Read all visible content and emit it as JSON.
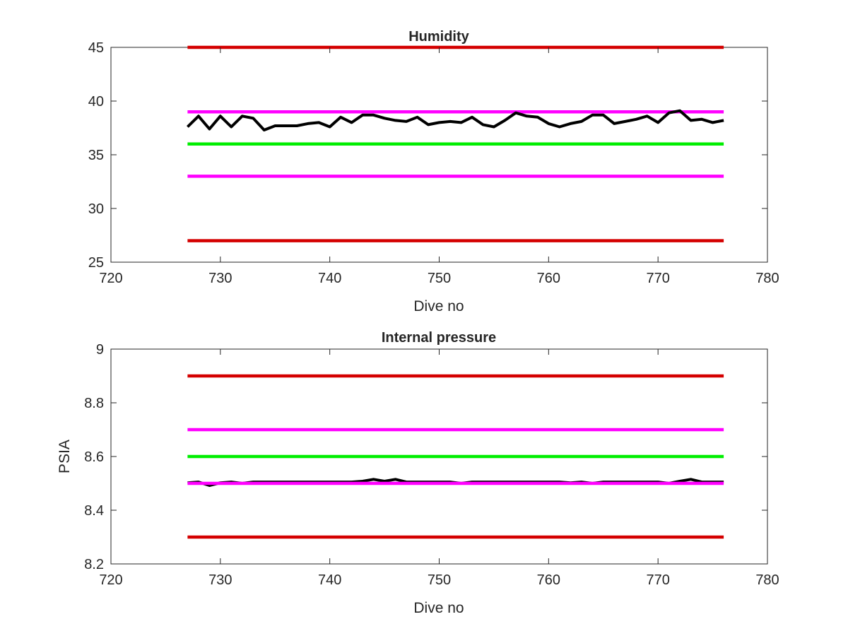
{
  "chart_data": [
    {
      "type": "line",
      "title": "Humidity",
      "xlabel": "Dive no",
      "ylabel": "",
      "xlim": [
        720,
        780
      ],
      "ylim": [
        25,
        45
      ],
      "xticks": [
        "720",
        "730",
        "740",
        "750",
        "760",
        "770",
        "780"
      ],
      "yticks": [
        "25",
        "30",
        "35",
        "40",
        "45"
      ],
      "grid": false,
      "legend": "none",
      "series": [
        {
          "color": "#d40000",
          "x": [
            727,
            776
          ],
          "y": [
            45,
            45
          ]
        },
        {
          "color": "#ff00ff",
          "x": [
            727,
            776
          ],
          "y": [
            39,
            39
          ]
        },
        {
          "color": "#00ee00",
          "x": [
            727,
            776
          ],
          "y": [
            36,
            36
          ]
        },
        {
          "color": "#ff00ff",
          "x": [
            727,
            776
          ],
          "y": [
            33,
            33
          ]
        },
        {
          "color": "#d40000",
          "x": [
            727,
            776
          ],
          "y": [
            27,
            27
          ]
        },
        {
          "color": "#000000",
          "x": [
            727,
            728,
            729,
            730,
            731,
            732,
            733,
            734,
            735,
            736,
            737,
            738,
            739,
            740,
            741,
            742,
            743,
            744,
            745,
            746,
            747,
            748,
            749,
            750,
            751,
            752,
            753,
            754,
            755,
            756,
            757,
            758,
            759,
            760,
            761,
            762,
            763,
            764,
            765,
            766,
            767,
            768,
            769,
            770,
            771,
            772,
            773,
            774,
            775,
            776
          ],
          "y": [
            37.6,
            38.6,
            37.4,
            38.6,
            37.6,
            38.6,
            38.4,
            37.3,
            37.7,
            37.7,
            37.7,
            37.9,
            38.0,
            37.6,
            38.5,
            38.0,
            38.7,
            38.7,
            38.4,
            38.2,
            38.1,
            38.5,
            37.8,
            38.0,
            38.1,
            38.0,
            38.5,
            37.8,
            37.6,
            38.2,
            38.9,
            38.6,
            38.5,
            37.9,
            37.6,
            37.9,
            38.1,
            38.7,
            38.7,
            37.9,
            38.1,
            38.3,
            38.6,
            38.0,
            38.9,
            39.1,
            38.2,
            38.3,
            38.0,
            38.2
          ]
        }
      ]
    },
    {
      "type": "line",
      "title": "Internal pressure",
      "xlabel": "Dive no",
      "ylabel": "PSIA",
      "xlim": [
        720,
        780
      ],
      "ylim": [
        8.2,
        9.0
      ],
      "xticks": [
        "720",
        "730",
        "740",
        "750",
        "760",
        "770",
        "780"
      ],
      "yticks": [
        "8.2",
        "8.4",
        "8.6",
        "8.8",
        "9"
      ],
      "grid": false,
      "legend": "none",
      "series": [
        {
          "color": "#d40000",
          "x": [
            727,
            776
          ],
          "y": [
            8.9,
            8.9
          ]
        },
        {
          "color": "#ff00ff",
          "x": [
            727,
            776
          ],
          "y": [
            8.7,
            8.7
          ]
        },
        {
          "color": "#00ee00",
          "x": [
            727,
            776
          ],
          "y": [
            8.6,
            8.6
          ]
        },
        {
          "color": "#000000",
          "x": [
            727,
            728,
            729,
            730,
            731,
            732,
            733,
            734,
            735,
            736,
            737,
            738,
            739,
            740,
            741,
            742,
            743,
            744,
            745,
            746,
            747,
            748,
            749,
            750,
            751,
            752,
            753,
            754,
            755,
            756,
            757,
            758,
            759,
            760,
            761,
            762,
            763,
            764,
            765,
            766,
            767,
            768,
            769,
            770,
            771,
            772,
            773,
            774,
            775,
            776
          ],
          "y": [
            8.502,
            8.505,
            8.492,
            8.502,
            8.505,
            8.5,
            8.505,
            8.505,
            8.505,
            8.505,
            8.505,
            8.505,
            8.505,
            8.505,
            8.505,
            8.505,
            8.508,
            8.515,
            8.508,
            8.515,
            8.505,
            8.505,
            8.505,
            8.505,
            8.505,
            8.5,
            8.505,
            8.505,
            8.505,
            8.505,
            8.505,
            8.505,
            8.505,
            8.505,
            8.505,
            8.502,
            8.505,
            8.5,
            8.505,
            8.505,
            8.505,
            8.505,
            8.505,
            8.505,
            8.5,
            8.508,
            8.515,
            8.505,
            8.505,
            8.505
          ]
        },
        {
          "color": "#ff00ff",
          "x": [
            727,
            776
          ],
          "y": [
            8.5,
            8.5
          ]
        },
        {
          "color": "#d40000",
          "x": [
            727,
            776
          ],
          "y": [
            8.3,
            8.3
          ]
        }
      ]
    }
  ]
}
